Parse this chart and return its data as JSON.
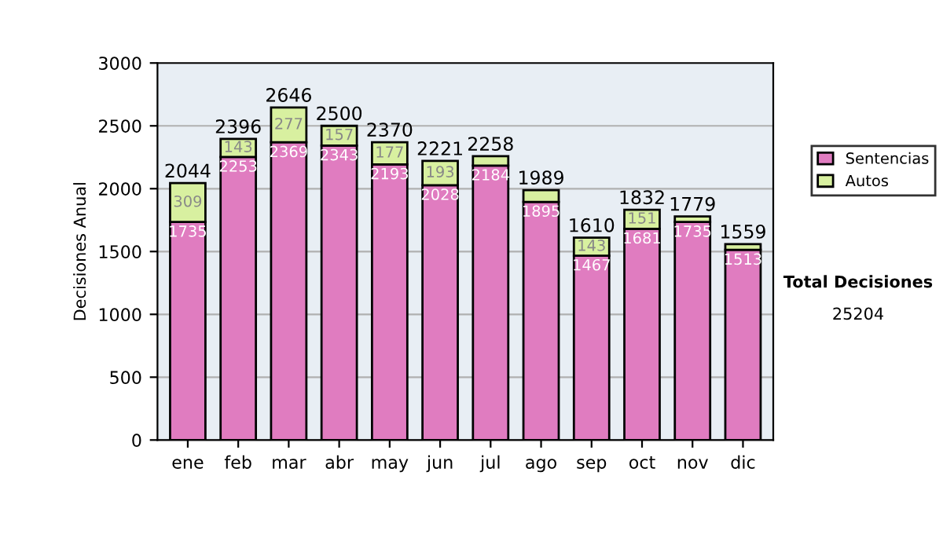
{
  "chart_data": {
    "type": "bar",
    "stacked": true,
    "ylabel": "Decisiones Anual",
    "categories": [
      "ene",
      "feb",
      "mar",
      "abr",
      "may",
      "jun",
      "jul",
      "ago",
      "sep",
      "oct",
      "nov",
      "dic"
    ],
    "series": [
      {
        "name": "Sentencias",
        "color": "#e07cc0",
        "values": [
          1735,
          2253,
          2369,
          2343,
          2193,
          2028,
          2184,
          1895,
          1467,
          1681,
          1735,
          1513
        ],
        "value_labels": [
          "1735",
          "2253",
          "2369",
          "2343",
          "2193",
          "2028",
          "2184",
          "1895",
          "1467",
          "1681",
          "1735",
          "1513"
        ]
      },
      {
        "name": "Autos",
        "color": "#d8f0a0",
        "values": [
          309,
          143,
          277,
          157,
          177,
          193,
          74,
          94,
          143,
          151,
          44,
          46
        ],
        "value_labels": [
          "309",
          "143",
          "277",
          "157",
          "177",
          "193",
          null,
          null,
          "143",
          "151",
          null,
          null
        ]
      }
    ],
    "totals": [
      "2044",
      "2396",
      "2646",
      "2500",
      "2370",
      "2221",
      "2258",
      "1989",
      "1610",
      "1832",
      "1779",
      "1559"
    ],
    "ylim": [
      0,
      3000
    ],
    "yticks": [
      0,
      500,
      1000,
      1500,
      2000,
      2500,
      3000
    ],
    "grid": "y",
    "legend": "right",
    "annotations": [
      "Total Decisiones",
      "25204"
    ]
  }
}
